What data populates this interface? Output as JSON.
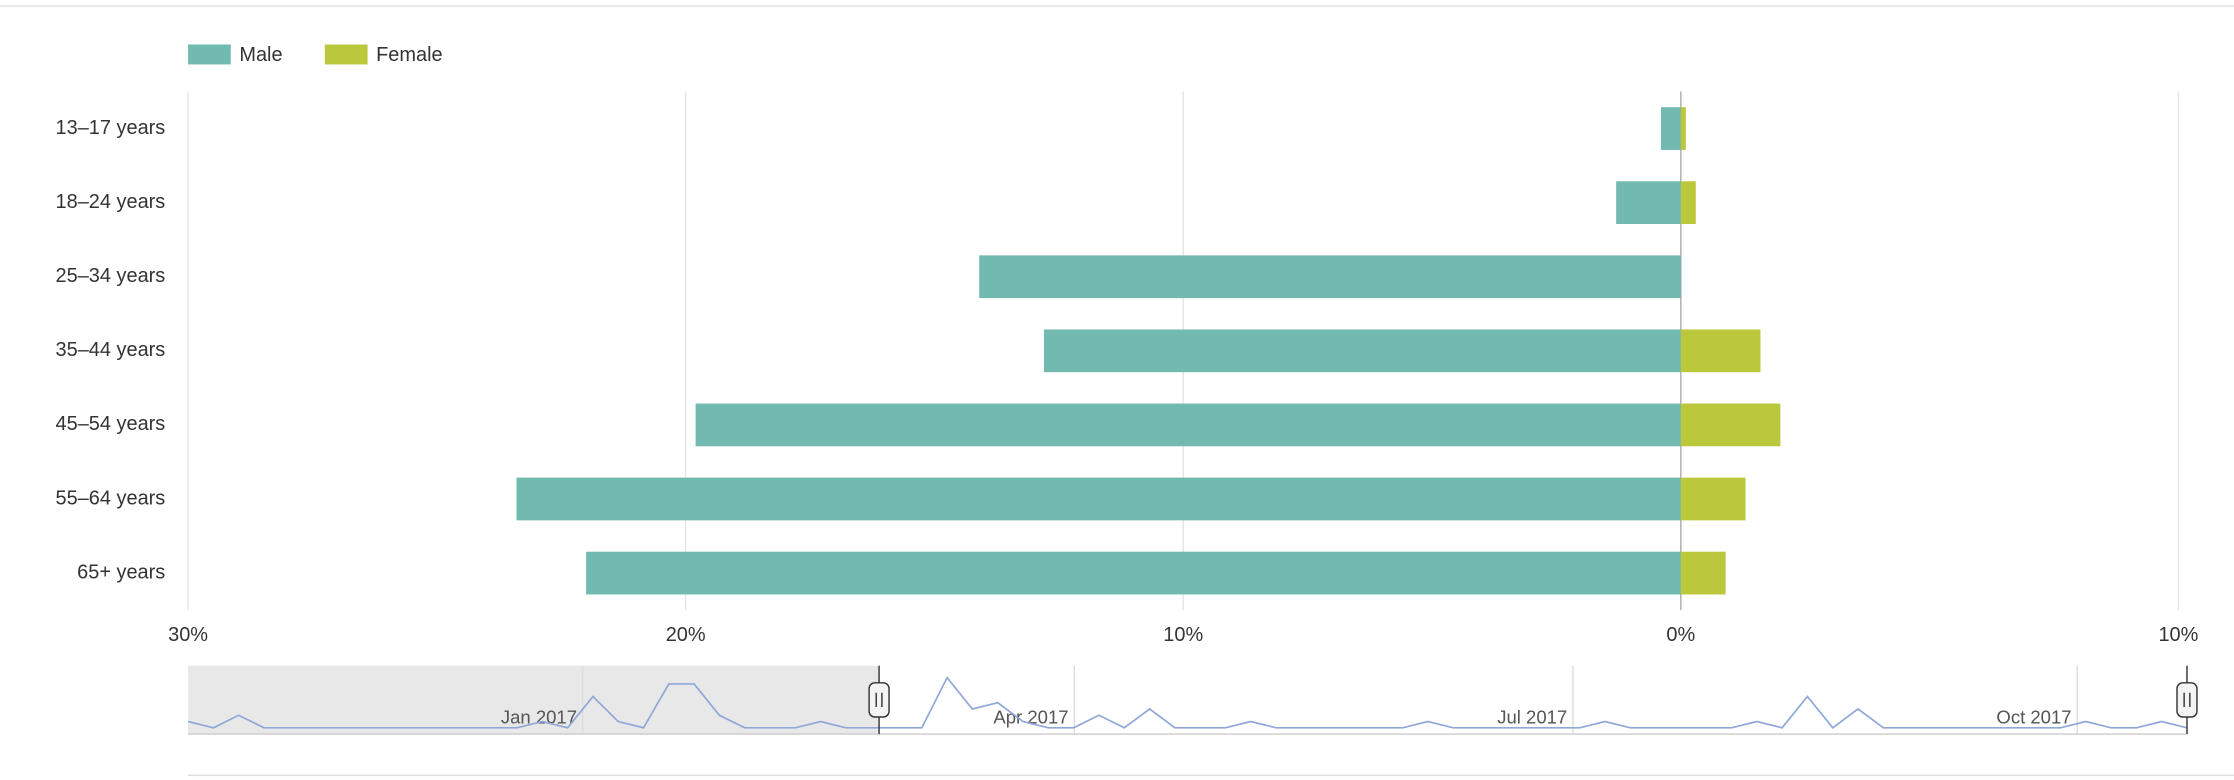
{
  "chart_data": {
    "type": "bar",
    "orientation": "horizontal",
    "categories": [
      "13–17 years",
      "18–24 years",
      "25–34 years",
      "35–44 years",
      "45–54 years",
      "55–64 years",
      "65+ years"
    ],
    "series": [
      {
        "name": "Male",
        "color": "#72bab0",
        "values": [
          -0.4,
          -1.3,
          -14.1,
          -12.8,
          -19.8,
          -23.4,
          -22.0
        ]
      },
      {
        "name": "Female",
        "color": "#bcc83c",
        "values": [
          0.1,
          0.3,
          0,
          1.6,
          2.0,
          1.3,
          0.9
        ]
      }
    ],
    "xlim": [
      -30,
      10
    ],
    "xticks": [
      {
        "value": -30,
        "label": "30%"
      },
      {
        "value": -20,
        "label": "20%"
      },
      {
        "value": -10,
        "label": "10%"
      },
      {
        "value": 0,
        "label": "0%"
      },
      {
        "value": 10,
        "label": "10%"
      }
    ],
    "grid": true,
    "legend": "top-left",
    "navigator": {
      "type": "line",
      "color": "#8fa8d8",
      "labels": [
        "Jan 2017",
        "Apr 2017",
        "Jul 2017",
        "Oct 2017"
      ],
      "ylim": [
        0,
        10
      ],
      "values": [
        2,
        1,
        3,
        1,
        1,
        1,
        1,
        1,
        1,
        1,
        1,
        1,
        1,
        1,
        2,
        1,
        6,
        2,
        1,
        8,
        8,
        3,
        1,
        1,
        1,
        2,
        1,
        1,
        1,
        1,
        9,
        4,
        5,
        2,
        1,
        1,
        3,
        1,
        4,
        1,
        1,
        1,
        2,
        1,
        1,
        1,
        1,
        1,
        1,
        2,
        1,
        1,
        1,
        1,
        1,
        1,
        2,
        1,
        1,
        1,
        1,
        1,
        2,
        1,
        6,
        1,
        4,
        1,
        1,
        1,
        1,
        1,
        1,
        1,
        1,
        2,
        1,
        1,
        2,
        1
      ]
    }
  }
}
